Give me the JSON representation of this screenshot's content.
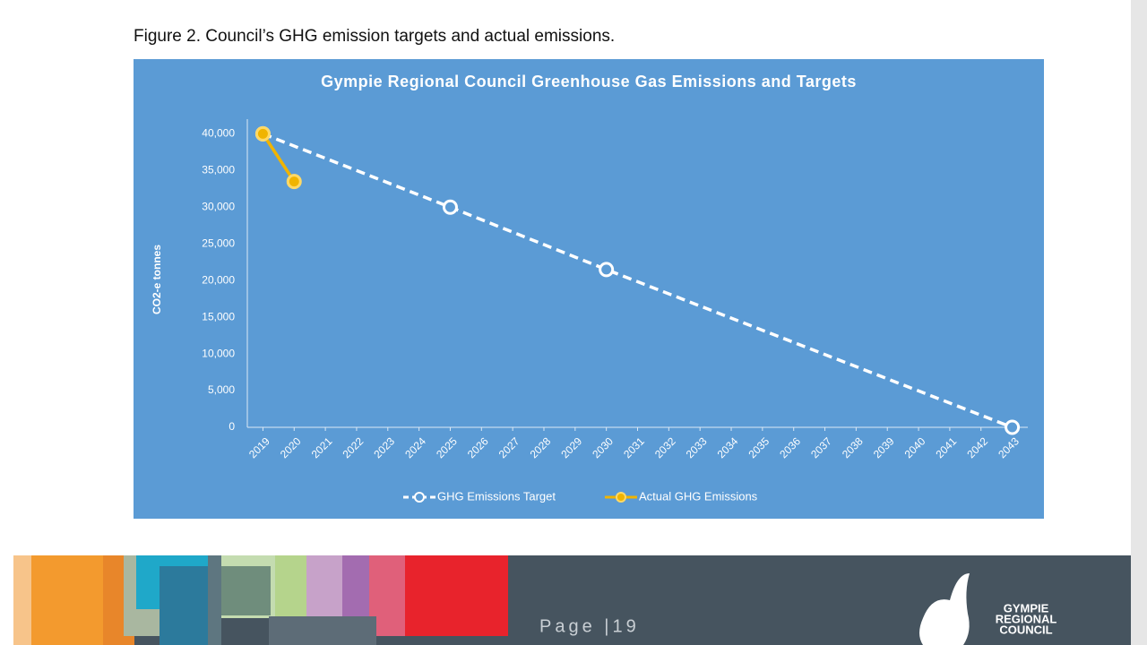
{
  "caption": "Figure 2.  Council’s GHG emission targets and actual emissions.",
  "chart_data": {
    "type": "line",
    "title": "Gympie Regional Council Greenhouse Gas Emissions and Targets",
    "y_label": "CO2-e tonnes",
    "xlim": [
      2018.5,
      2043.5
    ],
    "xticks": [
      2019,
      2020,
      2021,
      2022,
      2023,
      2024,
      2025,
      2026,
      2027,
      2028,
      2029,
      2030,
      2031,
      2032,
      2033,
      2034,
      2035,
      2036,
      2037,
      2038,
      2039,
      2040,
      2041,
      2042,
      2043
    ],
    "ylim": [
      0,
      42000
    ],
    "yticks": [
      {
        "value": 0,
        "label": "0"
      },
      {
        "value": 5000,
        "label": "5,000"
      },
      {
        "value": 10000,
        "label": "10,000"
      },
      {
        "value": 15000,
        "label": "15,000"
      },
      {
        "value": 20000,
        "label": "20,000"
      },
      {
        "value": 25000,
        "label": "25,000"
      },
      {
        "value": 30000,
        "label": "30,000"
      },
      {
        "value": 35000,
        "label": "35,000"
      },
      {
        "value": 40000,
        "label": "40,000"
      }
    ],
    "grid": false,
    "legend": "bottom",
    "series": [
      {
        "name": "GHG Emissions Target",
        "color": "#ffffff",
        "dashed": true,
        "x": [
          2019,
          2025,
          2030,
          2043
        ],
        "values": [
          40000,
          30000,
          21500,
          0
        ]
      },
      {
        "name": "Actual GHG Emissions",
        "color": "#f0b400",
        "dashed": false,
        "x": [
          2019,
          2020
        ],
        "values": [
          40000,
          33500
        ]
      }
    ]
  },
  "footer": {
    "page": "Page |19",
    "logo": [
      "GYMPIE",
      "REGIONAL",
      "COUNCIL"
    ]
  }
}
